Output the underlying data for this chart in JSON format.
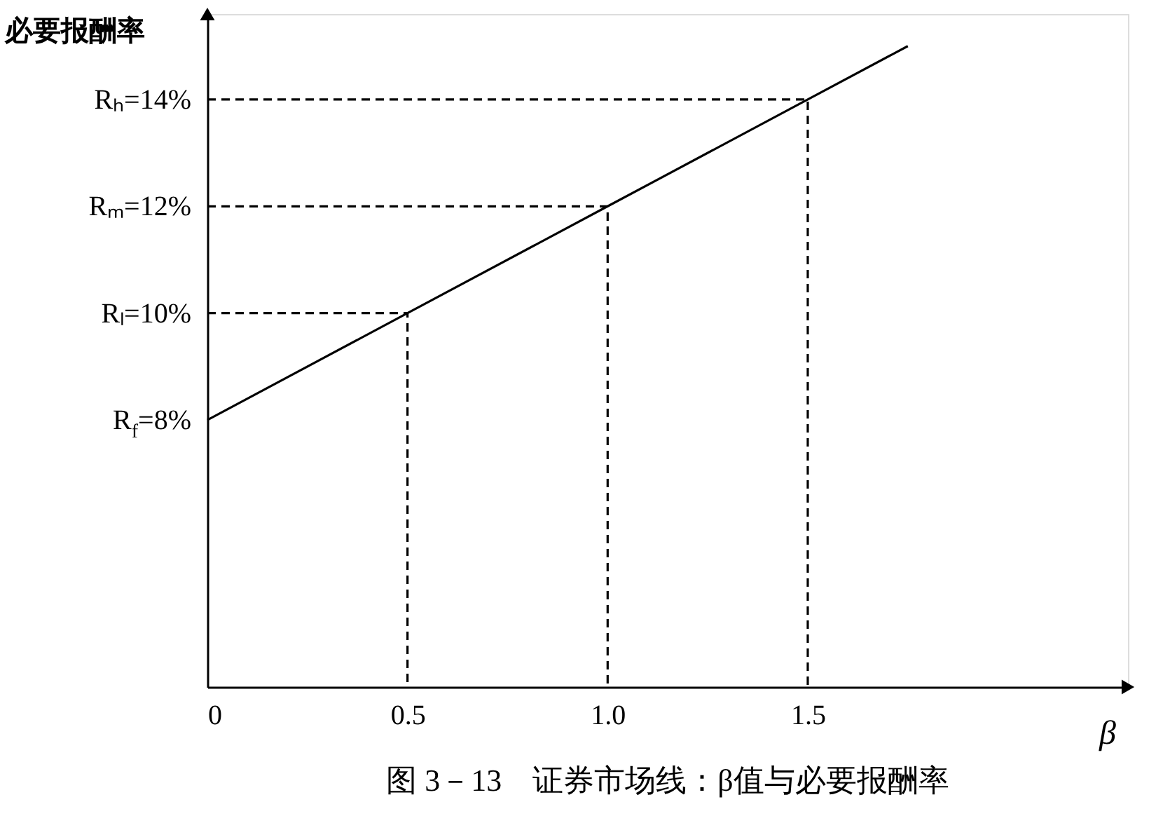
{
  "chart_data": {
    "type": "line",
    "title": "图 3－13　证券市场线：β值与必要报酬率",
    "xlabel": "β",
    "ylabel": "必要报酬率",
    "xlim": [
      0,
      2.3
    ],
    "ylim": [
      3,
      15.6
    ],
    "xticks": [
      0,
      0.5,
      {
        "value": 1,
        "label": "1.0"
      },
      1.5
    ],
    "yticks": [
      {
        "value": 8,
        "label": "R$_{f}$=8%"
      },
      {
        "value": 10,
        "label": "Rₗ=10%"
      },
      {
        "value": 12,
        "label": "Rₘ=12%"
      },
      {
        "value": 14,
        "label": "Rₕ=14%"
      }
    ],
    "grid": false,
    "marker": "none",
    "series": [
      {
        "color": "#000000",
        "line_style": "solid",
        "x": [
          0,
          0.5,
          1,
          1.5,
          1.75
        ],
        "values": [
          8,
          10,
          12,
          14,
          15
        ]
      },
      {
        "color": "#000000",
        "line_style": "dashed",
        "x": [
          0,
          0.5,
          0.5
        ],
        "values": [
          10,
          10,
          3
        ]
      },
      {
        "color": "#000000",
        "line_style": "dashed",
        "x": [
          0,
          1,
          1
        ],
        "values": [
          12,
          12,
          3
        ]
      },
      {
        "color": "#000000",
        "line_style": "dashed",
        "x": [
          0,
          1.5,
          1.5
        ],
        "values": [
          14,
          14,
          3
        ]
      }
    ]
  }
}
